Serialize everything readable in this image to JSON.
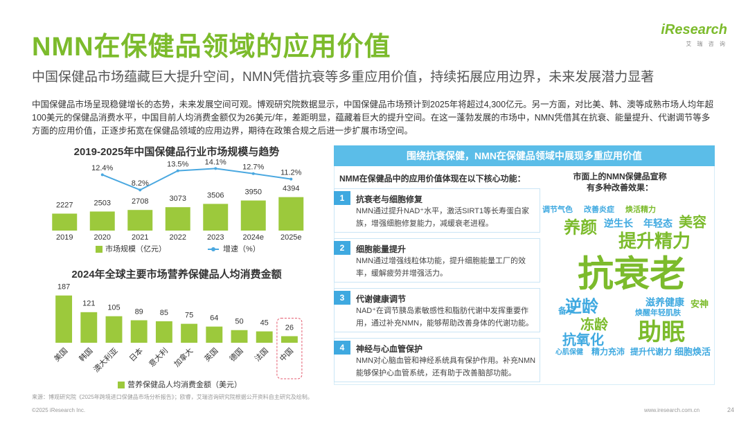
{
  "header": {
    "title": "NMN在保健品领域的应用价值",
    "subtitle": "中国保健品市场蕴藏巨大提升空间，NMN凭借抗衰等多重应用价值，持续拓展应用边界，未来发展潜力显著",
    "logo": "iResearch",
    "logo_sub": "艾 瑞 咨 询"
  },
  "intro": "中国保健品市场呈现稳健增长的态势，未来发展空间可观。博观研究院数据显示，中国保健品市场预计到2025年将超过4,300亿元。另一方面，对比美、韩、澳等成熟市场人均年超100美元的保健品消费水平，中国目前人均消费金额仅为26美元/年，差距明显，蕴藏着巨大的提升空间。在这一蓬勃发展的市场中，NMN凭借其在抗衰、能量提升、代谢调节等多方面的应用价值，正逐步拓宽在保健品领域的应用边界，期待在政策合规之后进一步扩展市场空间。",
  "chart_data": [
    {
      "type": "bar",
      "title": "2019-2025年中国保健品行业市场规模与趋势",
      "categories": [
        "2019",
        "2020",
        "2021",
        "2022",
        "2023",
        "2024e",
        "2025e"
      ],
      "series": [
        {
          "name": "市场规模（亿元）",
          "color": "#9cc93c",
          "values": [
            2227,
            2503,
            2708,
            3073,
            3506,
            3950,
            4394
          ]
        },
        {
          "name": "增速（%）",
          "type": "line",
          "axis": "y2",
          "color": "#4aa8e0",
          "values": [
            null,
            12.4,
            8.2,
            13.5,
            14.1,
            12.7,
            11.2
          ],
          "value_labels": [
            null,
            "12.4%",
            "8.2%",
            "13.5%",
            "14.1%",
            "12.7%",
            "11.2%"
          ]
        }
      ],
      "ylim": [
        0,
        10000
      ],
      "y2lim": [
        -3,
        18
      ]
    },
    {
      "type": "bar",
      "title": "2024年全球主要市场营养保健品人均消费金额",
      "categories": [
        "美国",
        "韩国",
        "澳大利亚",
        "日本",
        "意大利",
        "加拿大",
        "英国",
        "德国",
        "法国",
        "中国"
      ],
      "series": [
        {
          "name": "营养保健品人均消费金额（美元）",
          "color": "#9cc93c",
          "values": [
            187,
            121,
            105,
            89,
            85,
            75,
            64,
            50,
            45,
            26
          ]
        }
      ],
      "ylim": [
        0,
        200
      ]
    }
  ],
  "panel": {
    "title": "围绕抗衰保健，NMN在保健品领域中展现多重应用价值",
    "functions_title": "NMM在保健品中的应用价值体现在以下核心功能：",
    "functions": [
      {
        "number": 1,
        "title": "抗衰老与细胞修复",
        "text": "NMN通过提升NAD⁺水平，激活SIRT1等长寿蛋白家族，增强细胞修复能力，减缓衰老进程。"
      },
      {
        "number": 2,
        "title": "细胞能量提升",
        "text": "NMN通过增强线粒体功能，提升细胞能量工厂的效率，缓解疲劳并增强活力。"
      },
      {
        "number": 3,
        "title": "代谢健康调节",
        "text": "NAD⁺在调节胰岛素敏感性和脂肪代谢中发挥重要作用，通过补充NMN，能够帮助改善身体的代谢功能。"
      },
      {
        "number": 4,
        "title": "神经与心血管保护",
        "text": "NMN对心脑血管和神经系统具有保护作用。补充NMN能够保护心血管系统，还有助于改善脑部功能。"
      }
    ],
    "word_cloud": {
      "title": [
        "市面上的NMN保健品宣称",
        "有多种改善效果："
      ],
      "words": [
        "调节气色",
        "改善炎症",
        "焕活精力",
        "养颜",
        "逆生长",
        "年轻态",
        "美容",
        "提升精力",
        "抗衰老",
        "逆龄",
        "滋养健康",
        "安神",
        "备孕",
        "冻龄",
        "焕醒年轻肌肤",
        "助眠",
        "抗氧化",
        "心肌保健",
        "精力充沛",
        "提升代谢力",
        "细胞焕活"
      ]
    }
  },
  "footer": {
    "source": "来源：博观研究院《2025年跨境进口保健品市场分析报告》；欧睿，艾瑞咨询研究院根据公开资料自主研究及绘制。",
    "copyright": "©2025 iResearch Inc.",
    "website": "www.iresearch.com.cn",
    "page": 24
  }
}
